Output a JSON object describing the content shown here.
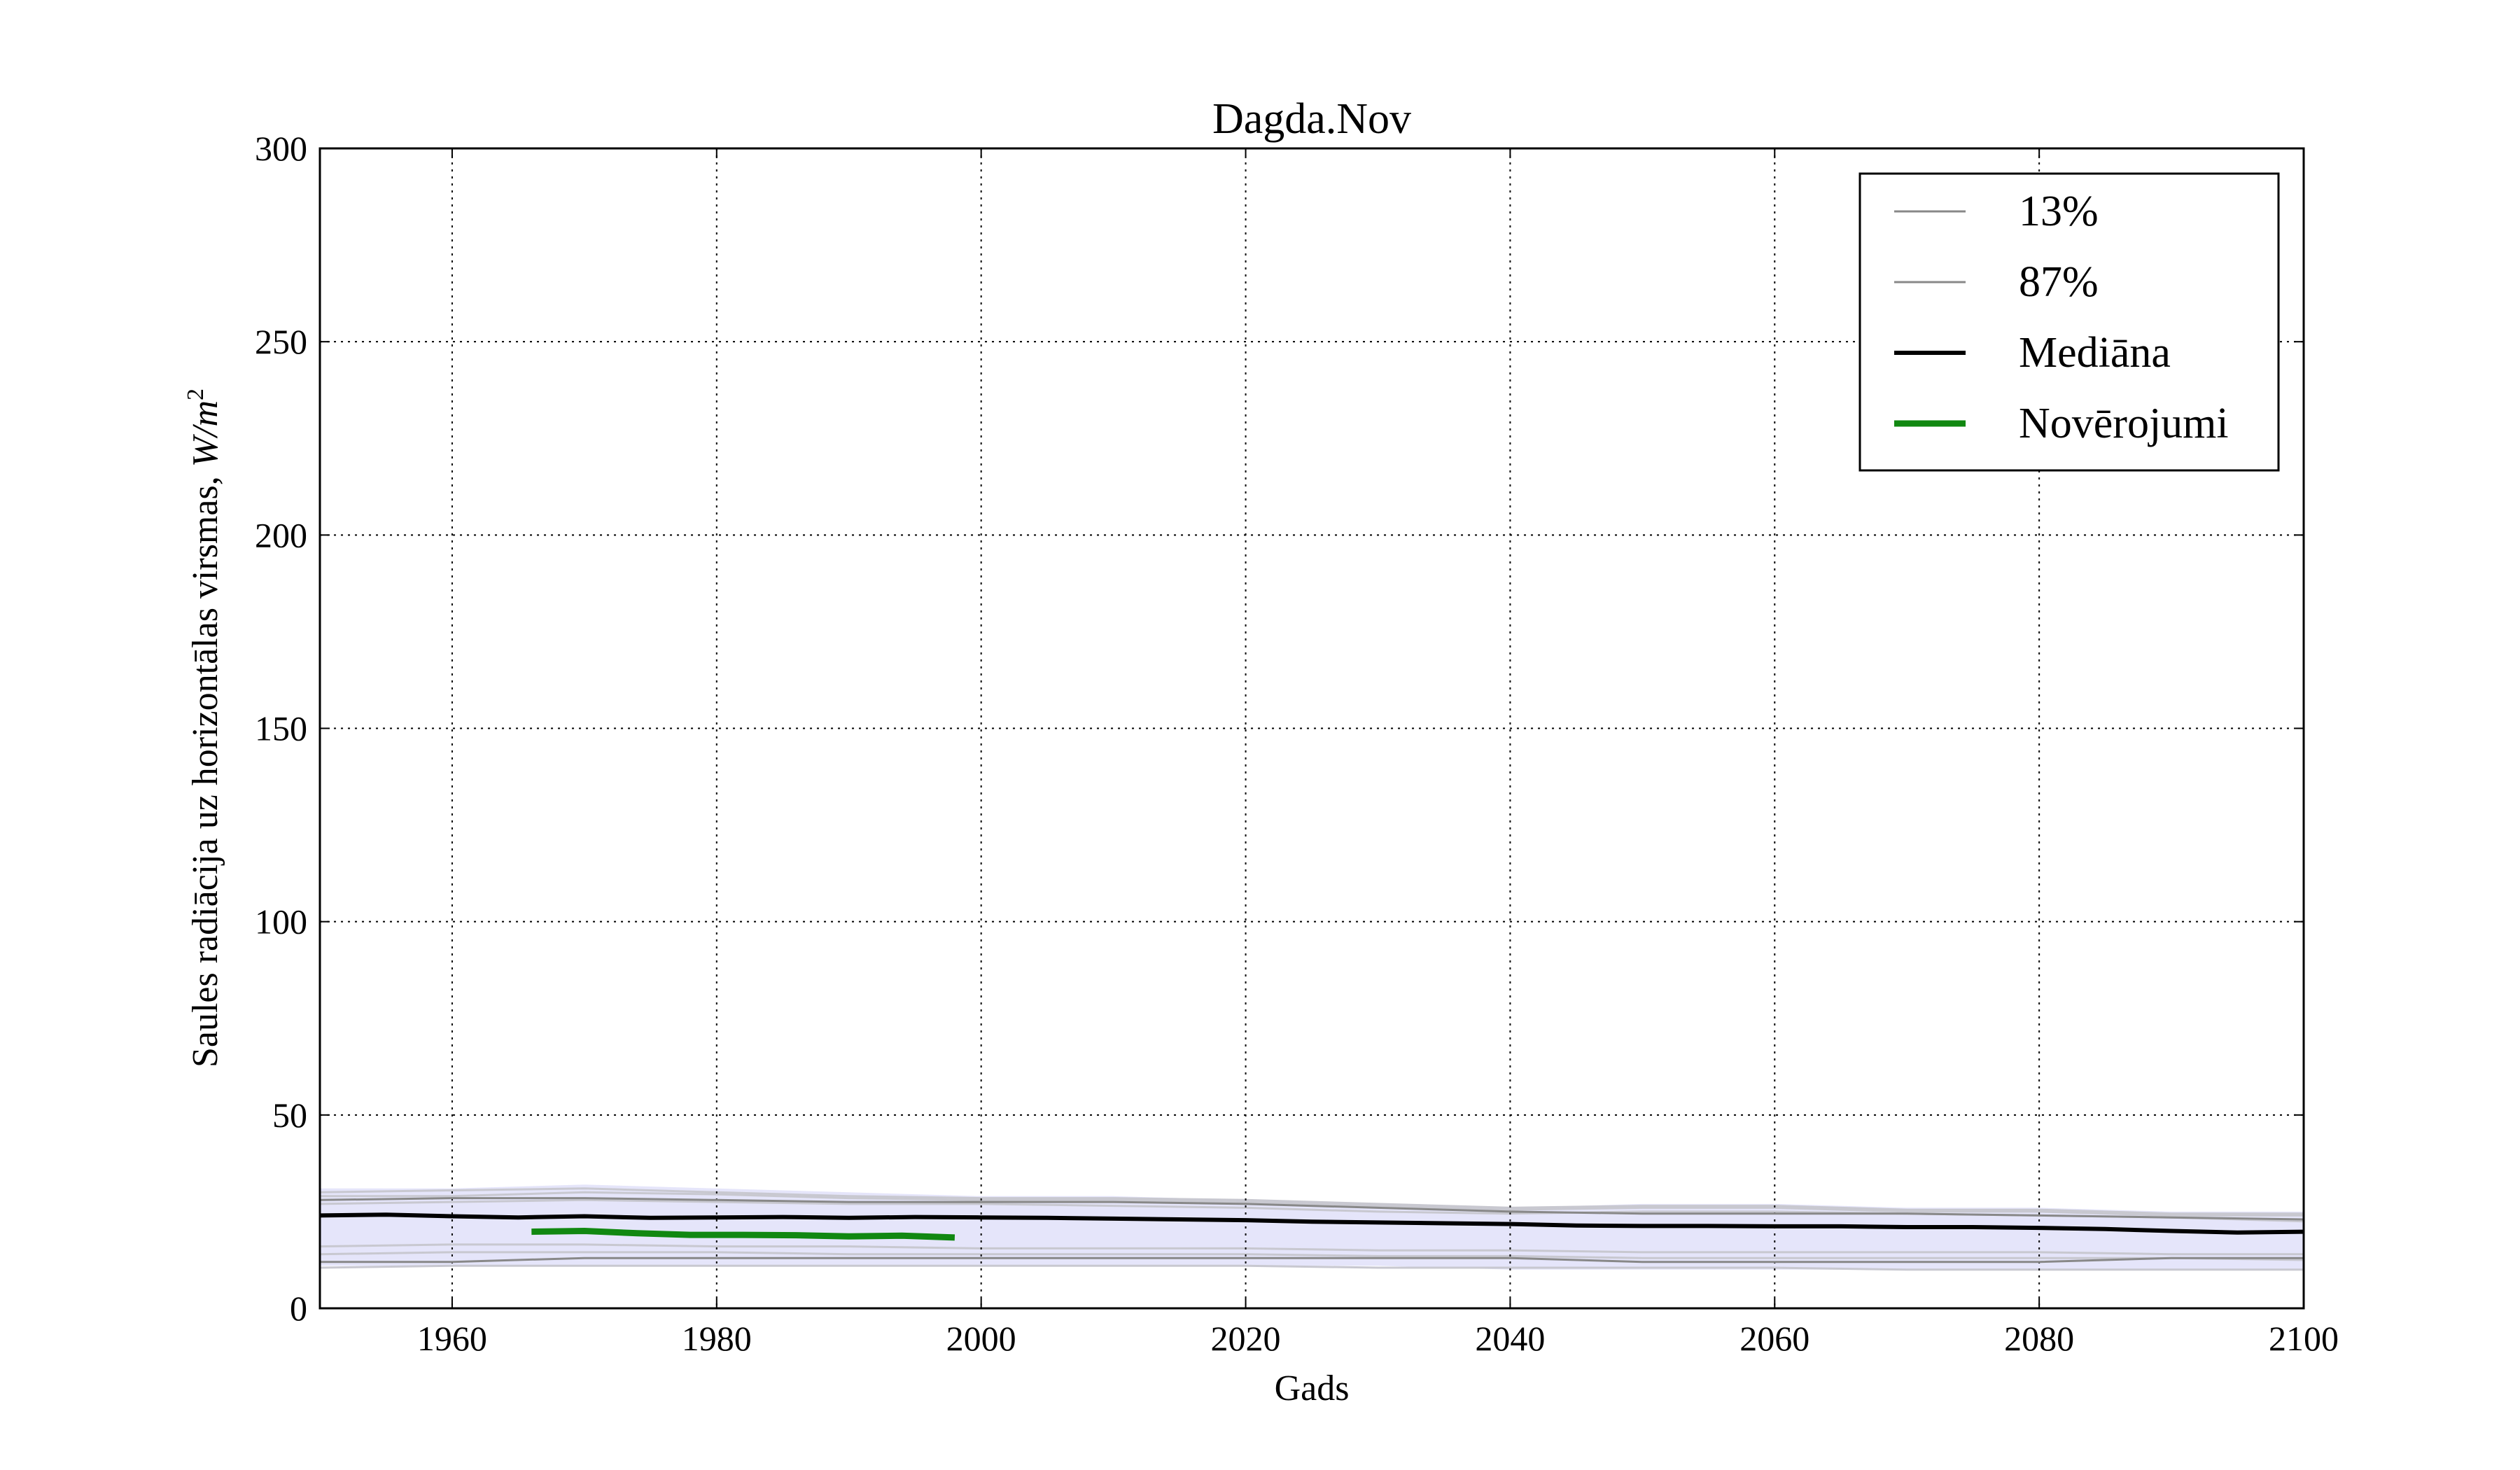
{
  "chart_data": {
    "type": "line",
    "title": "Dagda.Nov",
    "xlabel": "Gads",
    "ylabel_text": "Saules radiācija uz horizontālas virsmas, ",
    "ylabel_unit_main": "W/m",
    "ylabel_unit_sup": "2",
    "xlim": [
      1950,
      2100
    ],
    "ylim": [
      0,
      300
    ],
    "xticks": [
      1960,
      1980,
      2000,
      2020,
      2040,
      2060,
      2080,
      2100
    ],
    "yticks": [
      0,
      50,
      100,
      150,
      200,
      250,
      300
    ],
    "grid": true,
    "legend_position": "top-right",
    "band": {
      "x": [
        1950,
        1960,
        1970,
        1980,
        1990,
        2000,
        2010,
        2020,
        2030,
        2040,
        2050,
        2060,
        2070,
        2080,
        2090,
        2100
      ],
      "lower": [
        11,
        11,
        11,
        11,
        11,
        11,
        11,
        11,
        11,
        10,
        10,
        10,
        10,
        10,
        10,
        10
      ],
      "upper": [
        31,
        31,
        32,
        31,
        30,
        29,
        29,
        28,
        27,
        26,
        27,
        27,
        26,
        26,
        25,
        25
      ],
      "color": "#dcdcf8"
    },
    "series": [
      {
        "name": "13%",
        "color": "#888888",
        "width": 3,
        "x": [
          1950,
          1960,
          1970,
          1980,
          1990,
          2000,
          2010,
          2020,
          2030,
          2040,
          2050,
          2060,
          2070,
          2080,
          2090,
          2100
        ],
        "y": [
          12,
          12,
          13,
          13,
          13,
          13,
          13,
          13,
          13,
          13,
          12,
          12,
          12,
          12,
          13,
          13
        ]
      },
      {
        "name": "87%",
        "color": "#888888",
        "width": 3,
        "x": [
          1950,
          1960,
          1970,
          1980,
          1990,
          2000,
          2010,
          2020,
          2030,
          2040,
          2050,
          2060,
          2070,
          2080,
          2090,
          2100
        ],
        "y": [
          28,
          28.5,
          28.5,
          28,
          27.5,
          27.5,
          27.5,
          27,
          26,
          25,
          24.5,
          24.5,
          24.5,
          24,
          23.5,
          23
        ]
      },
      {
        "name": "Mediāna",
        "color": "#000000",
        "width": 6,
        "x": [
          1950,
          1955,
          1960,
          1965,
          1970,
          1975,
          1980,
          1985,
          1990,
          1995,
          2000,
          2005,
          2010,
          2015,
          2020,
          2025,
          2030,
          2035,
          2040,
          2045,
          2050,
          2055,
          2060,
          2065,
          2070,
          2075,
          2080,
          2085,
          2090,
          2095,
          2100
        ],
        "y": [
          24,
          24.2,
          23.8,
          23.5,
          23.8,
          23.4,
          23.5,
          23.6,
          23.4,
          23.6,
          23.5,
          23.4,
          23.2,
          23,
          22.8,
          22.4,
          22.2,
          22,
          21.8,
          21.4,
          21.3,
          21.3,
          21.2,
          21.2,
          21,
          21,
          20.8,
          20.5,
          20,
          19.6,
          19.8
        ]
      },
      {
        "name": "Novērojumi",
        "color": "#118811",
        "width": 9,
        "x": [
          1966,
          1970,
          1974,
          1978,
          1982,
          1986,
          1990,
          1994,
          1998
        ],
        "y": [
          19.8,
          20,
          19.4,
          19,
          19,
          18.9,
          18.6,
          18.8,
          18.3
        ]
      }
    ],
    "ensemble": {
      "color": "#c8c8d0",
      "x": [
        1950,
        1960,
        1970,
        1980,
        1990,
        2000,
        2010,
        2020,
        2030,
        2040,
        2050,
        2060,
        2070,
        2080,
        2090,
        2100
      ],
      "members": [
        [
          30,
          30.5,
          31,
          30,
          29,
          28.5,
          28.5,
          28,
          27,
          26,
          26.5,
          26.5,
          25.5,
          25.5,
          24.5,
          24.5
        ],
        [
          27,
          27.5,
          28,
          27.5,
          27,
          27,
          26.5,
          26,
          25,
          24.5,
          25,
          25,
          24.5,
          24,
          23.5,
          22.5
        ],
        [
          29,
          29,
          30,
          29.5,
          28.5,
          28,
          28,
          27.5,
          26.5,
          25.5,
          26,
          26,
          25,
          25,
          24,
          24
        ],
        [
          16,
          16.5,
          16.5,
          16,
          16,
          15.5,
          15.5,
          15.5,
          15,
          15,
          14.5,
          14.5,
          14.5,
          14.5,
          14,
          14
        ],
        [
          14,
          14.5,
          14.5,
          14.5,
          14,
          14,
          14,
          14,
          13.5,
          13.5,
          13,
          13,
          13,
          13,
          13,
          12.5
        ],
        [
          10.5,
          11,
          11,
          11,
          11,
          11,
          11,
          11,
          10.5,
          10.5,
          10.5,
          10.5,
          10,
          10,
          10,
          10
        ]
      ]
    }
  }
}
